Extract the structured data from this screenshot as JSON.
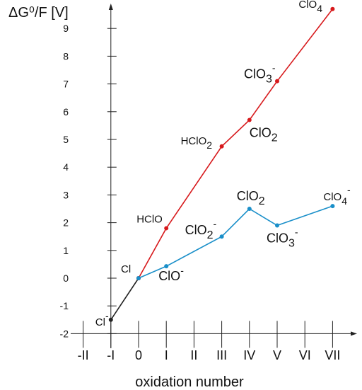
{
  "chart_data": {
    "type": "line",
    "ylabel": "ΔG⁰/F [V]",
    "xlabel": "oxidation number",
    "x_ticks": [
      "-II",
      "-I",
      "0",
      "I",
      "II",
      "III",
      "IV",
      "V",
      "VI",
      "VII"
    ],
    "y_ticks": [
      -2,
      -1,
      0,
      1,
      2,
      3,
      4,
      5,
      6,
      7,
      8,
      9
    ],
    "xlim": [
      -2,
      7
    ],
    "ylim": [
      -2,
      9.5
    ],
    "series": [
      {
        "color": "#222222",
        "points": [
          {
            "x": -1,
            "y": -1.5,
            "label": "Cl",
            "sup": "-",
            "sub": ""
          },
          {
            "x": 0,
            "y": 0,
            "label": "Cl",
            "sup": "",
            "sub": ""
          }
        ]
      },
      {
        "color": "#d7191c",
        "points": [
          {
            "x": 0,
            "y": 0,
            "label": "",
            "sup": "",
            "sub": ""
          },
          {
            "x": 1,
            "y": 1.8,
            "label": "HClO",
            "sup": "",
            "sub": ""
          },
          {
            "x": 3,
            "y": 4.75,
            "label": "HClO",
            "sup": "",
            "sub": "2"
          },
          {
            "x": 4,
            "y": 5.7,
            "label": "ClO",
            "sup": "",
            "sub": "2"
          },
          {
            "x": 5,
            "y": 7.1,
            "label": "ClO",
            "sup": "-",
            "sub": "3"
          },
          {
            "x": 7,
            "y": 9.7,
            "label": "ClO",
            "sup": "-",
            "sub": "4"
          }
        ]
      },
      {
        "color": "#1a8fc9",
        "points": [
          {
            "x": 0,
            "y": 0,
            "label": "",
            "sup": "",
            "sub": ""
          },
          {
            "x": 1,
            "y": 0.43,
            "label": "ClO",
            "sup": "-",
            "sub": ""
          },
          {
            "x": 3,
            "y": 1.5,
            "label": "ClO",
            "sup": "-",
            "sub": "2"
          },
          {
            "x": 4,
            "y": 2.5,
            "label": "ClO",
            "sup": "",
            "sub": "2"
          },
          {
            "x": 5,
            "y": 1.9,
            "label": "ClO",
            "sup": "-",
            "sub": "3"
          },
          {
            "x": 7,
            "y": 2.6,
            "label": "ClO",
            "sup": "-",
            "sub": "4"
          }
        ]
      }
    ]
  }
}
